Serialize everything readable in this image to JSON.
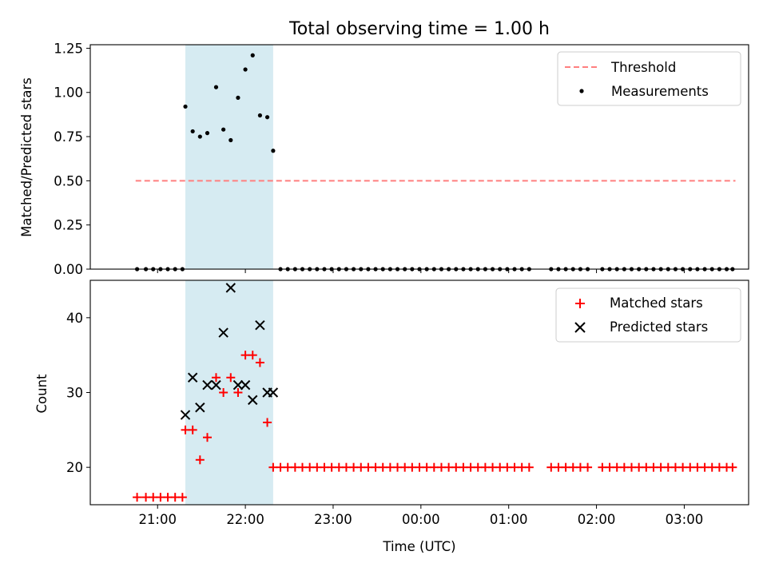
{
  "chart_data": [
    {
      "type": "scatter",
      "title": "Total observing time = 1.00 h",
      "xlabel": "",
      "ylabel": "Matched/Predicted stars",
      "ylim": [
        0,
        1.27
      ],
      "yticks": [
        "0.00",
        "0.25",
        "0.50",
        "0.75",
        "1.00",
        "1.25"
      ],
      "grid": false,
      "legend_position": "top-right",
      "highlight_span": {
        "start": "21:19",
        "end": "22:19",
        "color": "#add8e6"
      },
      "threshold": {
        "name": "Threshold",
        "value": 0.5,
        "x_start": "20:45",
        "x_end": "03:35",
        "color": "#ff7f7f",
        "style": "dashed"
      },
      "series": [
        {
          "name": "Measurements",
          "marker": "dot",
          "color": "#000000",
          "x": [
            "20:46",
            "20:52",
            "20:57",
            "21:02",
            "21:07",
            "21:12",
            "21:17",
            "21:19",
            "21:24",
            "21:29",
            "21:34",
            "21:40",
            "21:45",
            "21:50",
            "21:55",
            "22:00",
            "22:05",
            "22:10",
            "22:15",
            "22:19",
            "22:24",
            "22:29",
            "22:34",
            "22:39",
            "22:44",
            "22:49",
            "22:54",
            "22:59",
            "23:04",
            "23:09",
            "23:14",
            "23:19",
            "23:24",
            "23:29",
            "23:34",
            "23:39",
            "23:44",
            "23:49",
            "23:54",
            "23:59",
            "00:04",
            "00:09",
            "00:14",
            "00:19",
            "00:24",
            "00:29",
            "00:34",
            "00:39",
            "00:44",
            "00:49",
            "00:54",
            "00:59",
            "01:04",
            "01:09",
            "01:14",
            "01:29",
            "01:34",
            "01:39",
            "01:44",
            "01:49",
            "01:54",
            "02:04",
            "02:09",
            "02:14",
            "02:19",
            "02:24",
            "02:29",
            "02:34",
            "02:39",
            "02:44",
            "02:49",
            "02:54",
            "02:59",
            "03:04",
            "03:09",
            "03:14",
            "03:19",
            "03:24",
            "03:29",
            "03:33"
          ],
          "y": [
            0,
            0,
            0,
            0,
            0,
            0,
            0,
            0.92,
            0.78,
            0.75,
            0.77,
            1.03,
            0.79,
            0.73,
            0.97,
            1.13,
            1.21,
            0.87,
            0.86,
            0.67,
            0,
            0,
            0,
            0,
            0,
            0,
            0,
            0,
            0,
            0,
            0,
            0,
            0,
            0,
            0,
            0,
            0,
            0,
            0,
            0,
            0,
            0,
            0,
            0,
            0,
            0,
            0,
            0,
            0,
            0,
            0,
            0,
            0,
            0,
            0,
            0,
            0,
            0,
            0,
            0,
            0,
            0,
            0,
            0,
            0,
            0,
            0,
            0,
            0,
            0,
            0,
            0,
            0,
            0,
            0,
            0,
            0,
            0,
            0,
            0
          ]
        }
      ]
    },
    {
      "type": "scatter",
      "title": "",
      "xlabel": "Time (UTC)",
      "ylabel": "Count",
      "ylim": [
        15,
        45
      ],
      "yticks": [
        "20",
        "30",
        "40"
      ],
      "xticks": [
        "21:00",
        "22:00",
        "23:00",
        "00:00",
        "01:00",
        "02:00",
        "03:00"
      ],
      "grid": false,
      "legend_position": "top-right",
      "highlight_span": {
        "start": "21:19",
        "end": "22:19",
        "color": "#add8e6"
      },
      "series": [
        {
          "name": "Matched stars",
          "marker": "plus",
          "color": "#ff0000",
          "x": [
            "20:46",
            "20:52",
            "20:57",
            "21:02",
            "21:07",
            "21:12",
            "21:17",
            "21:19",
            "21:24",
            "21:29",
            "21:34",
            "21:40",
            "21:45",
            "21:50",
            "21:55",
            "22:00",
            "22:05",
            "22:10",
            "22:15",
            "22:19",
            "22:24",
            "22:29",
            "22:34",
            "22:39",
            "22:44",
            "22:49",
            "22:54",
            "22:59",
            "23:04",
            "23:09",
            "23:14",
            "23:19",
            "23:24",
            "23:29",
            "23:34",
            "23:39",
            "23:44",
            "23:49",
            "23:54",
            "23:59",
            "00:04",
            "00:09",
            "00:14",
            "00:19",
            "00:24",
            "00:29",
            "00:34",
            "00:39",
            "00:44",
            "00:49",
            "00:54",
            "00:59",
            "01:04",
            "01:09",
            "01:14",
            "01:29",
            "01:34",
            "01:39",
            "01:44",
            "01:49",
            "01:54",
            "02:04",
            "02:09",
            "02:14",
            "02:19",
            "02:24",
            "02:29",
            "02:34",
            "02:39",
            "02:44",
            "02:49",
            "02:54",
            "02:59",
            "03:04",
            "03:09",
            "03:14",
            "03:19",
            "03:24",
            "03:29",
            "03:33"
          ],
          "y": [
            16,
            16,
            16,
            16,
            16,
            16,
            16,
            25,
            25,
            21,
            24,
            32,
            30,
            32,
            30,
            35,
            35,
            34,
            26,
            20,
            20,
            20,
            20,
            20,
            20,
            20,
            20,
            20,
            20,
            20,
            20,
            20,
            20,
            20,
            20,
            20,
            20,
            20,
            20,
            20,
            20,
            20,
            20,
            20,
            20,
            20,
            20,
            20,
            20,
            20,
            20,
            20,
            20,
            20,
            20,
            20,
            20,
            20,
            20,
            20,
            20,
            20,
            20,
            20,
            20,
            20,
            20,
            20,
            20,
            20,
            20,
            20,
            20,
            20,
            20,
            20,
            20,
            20,
            20,
            20
          ]
        },
        {
          "name": "Predicted stars",
          "marker": "x",
          "color": "#000000",
          "x": [
            "21:19",
            "21:24",
            "21:29",
            "21:34",
            "21:40",
            "21:45",
            "21:50",
            "21:55",
            "22:00",
            "22:05",
            "22:10",
            "22:15",
            "22:19"
          ],
          "y": [
            27,
            32,
            28,
            31,
            31,
            38,
            44,
            31,
            31,
            29,
            39,
            30,
            30
          ]
        }
      ]
    }
  ]
}
